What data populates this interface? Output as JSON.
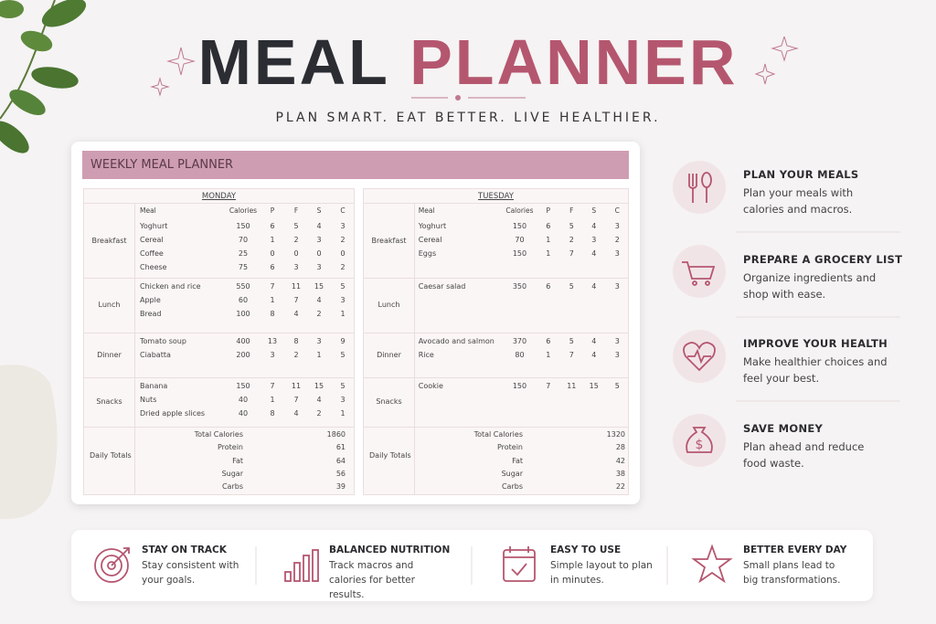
{
  "header": {
    "title_dark": "MEAL",
    "title_accent": "PLANNER",
    "tagline": "PLAN SMART. EAT BETTER. LIVE HEALTHIER."
  },
  "planner": {
    "title": "WEEKLY MEAL PLANNER",
    "days": [
      {
        "name": "MONDAY",
        "columns": [
          "Meal",
          "Calories",
          "P",
          "F",
          "S",
          "C"
        ],
        "sections": [
          {
            "name": "Breakfast",
            "rows": [
              [
                "Yoghurt",
                150,
                6,
                5,
                4,
                3
              ],
              [
                "Cereal",
                70,
                1,
                2,
                3,
                2
              ],
              [
                "Coffee",
                25,
                0,
                0,
                0,
                0
              ],
              [
                "Cheese",
                75,
                6,
                3,
                3,
                2
              ]
            ]
          },
          {
            "name": "Lunch",
            "rows": [
              [
                "Chicken and rice",
                550,
                7,
                11,
                15,
                5
              ],
              [
                "Apple",
                60,
                1,
                7,
                4,
                3
              ],
              [
                "Bread",
                100,
                8,
                4,
                2,
                1
              ]
            ]
          },
          {
            "name": "Dinner",
            "rows": [
              [
                "Tomato soup",
                400,
                13,
                8,
                3,
                9
              ],
              [
                "Ciabatta",
                200,
                3,
                2,
                1,
                5
              ]
            ]
          },
          {
            "name": "Snacks",
            "rows": [
              [
                "Banana",
                150,
                7,
                11,
                15,
                5
              ],
              [
                "Nuts",
                40,
                1,
                7,
                4,
                3
              ],
              [
                "Dried apple slices",
                40,
                8,
                4,
                2,
                1
              ]
            ]
          }
        ],
        "totals_label": "Daily Totals",
        "totals": [
          [
            "Total Calories",
            1860
          ],
          [
            "Protein",
            61
          ],
          [
            "Fat",
            64
          ],
          [
            "Sugar",
            56
          ],
          [
            "Carbs",
            39
          ]
        ]
      },
      {
        "name": "TUESDAY",
        "columns": [
          "Meal",
          "Calories",
          "P",
          "F",
          "S",
          "C"
        ],
        "sections": [
          {
            "name": "Breakfast",
            "rows": [
              [
                "Yoghurt",
                150,
                6,
                5,
                4,
                3
              ],
              [
                "Cereal",
                70,
                1,
                2,
                3,
                2
              ],
              [
                "Eggs",
                150,
                1,
                7,
                4,
                3
              ]
            ]
          },
          {
            "name": "Lunch",
            "rows": [
              [
                "Caesar salad",
                350,
                6,
                5,
                4,
                3
              ]
            ]
          },
          {
            "name": "Dinner",
            "rows": [
              [
                "Avocado and salmon",
                370,
                6,
                5,
                4,
                3
              ],
              [
                "Rice",
                80,
                1,
                7,
                4,
                3
              ]
            ]
          },
          {
            "name": "Snacks",
            "rows": [
              [
                "Cookie",
                150,
                7,
                11,
                15,
                5
              ]
            ]
          }
        ],
        "totals_label": "Daily Totals",
        "totals": [
          [
            "Total Calories",
            1320
          ],
          [
            "Protein",
            28
          ],
          [
            "Fat",
            42
          ],
          [
            "Sugar",
            38
          ],
          [
            "Carbs",
            22
          ]
        ]
      }
    ]
  },
  "features": [
    {
      "title": "PLAN YOUR MEALS",
      "text": "Plan your meals with calories and macros."
    },
    {
      "title": "PREPARE A GROCERY LIST",
      "text": "Organize ingredients and shop with ease."
    },
    {
      "title": "IMPROVE YOUR HEALTH",
      "text": "Make healthier choices and feel your best."
    },
    {
      "title": "SAVE MONEY",
      "text": "Plan ahead and reduce food waste."
    }
  ],
  "benefits": [
    {
      "title": "STAY ON TRACK",
      "text": "Stay consistent with your goals."
    },
    {
      "title": "BALANCED NUTRITION",
      "text": "Track macros and calories for better results."
    },
    {
      "title": "EASY TO USE",
      "text": "Simple layout to plan in minutes."
    },
    {
      "title": "BETTER EVERY DAY",
      "text": "Small plans lead to big transformations."
    }
  ]
}
